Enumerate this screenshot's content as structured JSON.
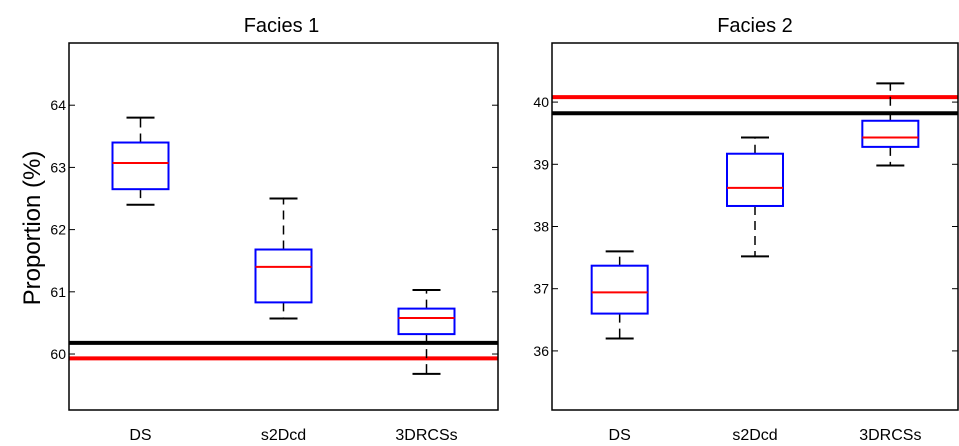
{
  "figure": {
    "ylabel": "Proportion (%)"
  },
  "chart_data": [
    {
      "type": "box",
      "title": "Facies 1",
      "ylabel": "Proportion (%)",
      "ylim": [
        59.1,
        65.0
      ],
      "yticks": [
        60,
        61,
        62,
        63,
        64
      ],
      "categories": [
        "DS",
        "s2Dcd",
        "3DRCSs"
      ],
      "boxes": [
        {
          "label": "DS",
          "whisker_low": 62.4,
          "q1": 62.65,
          "median": 63.07,
          "q3": 63.4,
          "whisker_high": 63.8
        },
        {
          "label": "s2Dcd",
          "whisker_low": 60.57,
          "q1": 60.83,
          "median": 61.4,
          "q3": 61.68,
          "whisker_high": 62.5
        },
        {
          "label": "3DRCSs",
          "whisker_low": 59.68,
          "q1": 60.32,
          "median": 60.58,
          "q3": 60.73,
          "whisker_high": 61.03
        }
      ],
      "reference_lines": [
        {
          "value": 60.18,
          "color": "#000000"
        },
        {
          "value": 59.93,
          "color": "#ff0000"
        }
      ],
      "colors": {
        "box": "#0000ff",
        "median": "#ff0000",
        "whisker": "#000000"
      },
      "grid": false
    },
    {
      "type": "box",
      "title": "Facies 2",
      "ylabel": "",
      "ylim": [
        35.05,
        40.95
      ],
      "yticks": [
        36,
        37,
        38,
        39,
        40
      ],
      "categories": [
        "DS",
        "s2Dcd",
        "3DRCSs"
      ],
      "boxes": [
        {
          "label": "DS",
          "whisker_low": 36.2,
          "q1": 36.6,
          "median": 36.94,
          "q3": 37.37,
          "whisker_high": 37.6
        },
        {
          "label": "s2Dcd",
          "whisker_low": 37.52,
          "q1": 38.33,
          "median": 38.62,
          "q3": 39.17,
          "whisker_high": 39.43
        },
        {
          "label": "3DRCSs",
          "whisker_low": 38.98,
          "q1": 39.28,
          "median": 39.43,
          "q3": 39.7,
          "whisker_high": 40.3
        }
      ],
      "reference_lines": [
        {
          "value": 40.08,
          "color": "#ff0000"
        },
        {
          "value": 39.82,
          "color": "#000000"
        }
      ],
      "colors": {
        "box": "#0000ff",
        "median": "#ff0000",
        "whisker": "#000000"
      },
      "grid": false
    }
  ]
}
